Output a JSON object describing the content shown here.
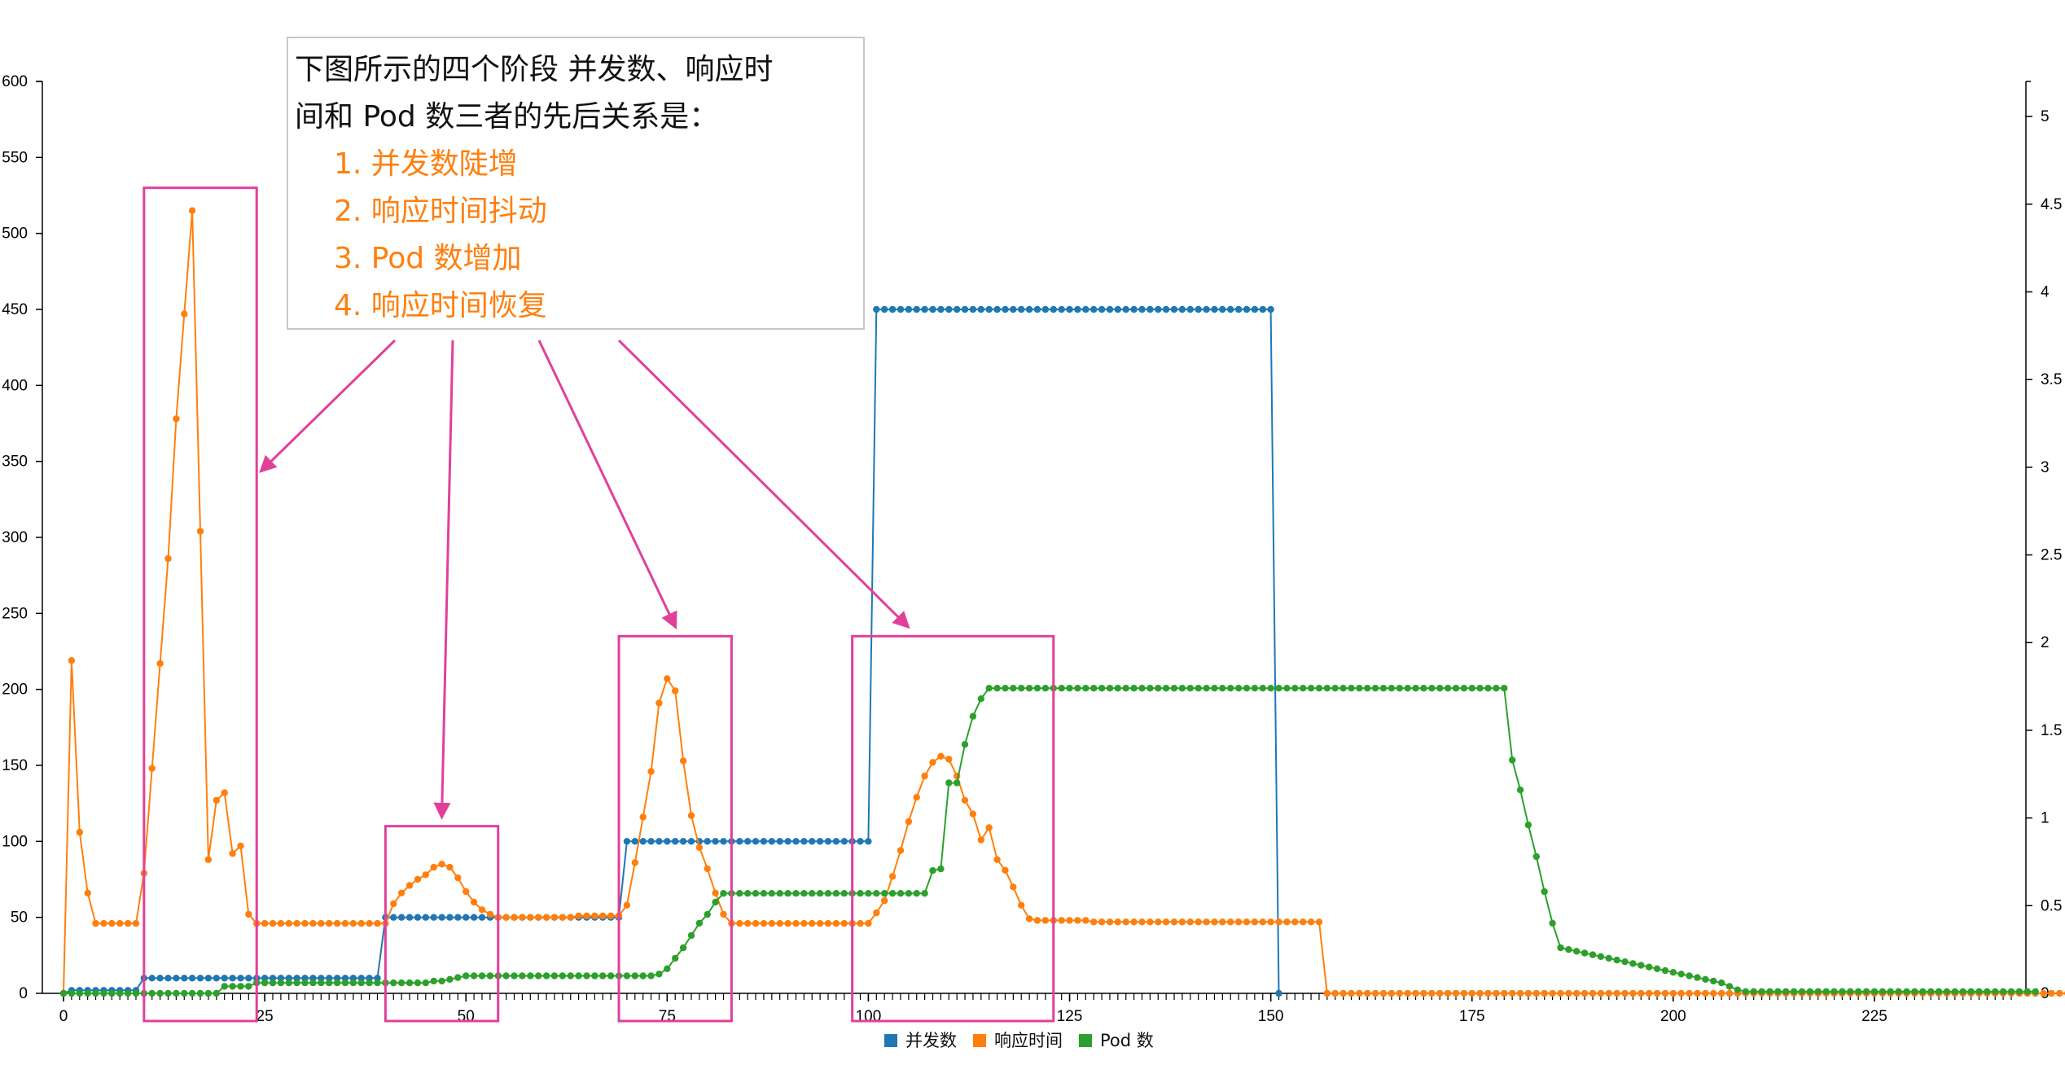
{
  "chart_data": {
    "type": "line",
    "title": "",
    "xlabel": "",
    "ylabel": "",
    "xlim": [
      0,
      242
    ],
    "ylim": [
      0,
      600
    ],
    "y2lim": [
      0,
      5.2
    ],
    "x_ticks": [
      "0",
      "25",
      "50",
      "75",
      "100",
      "125",
      "150",
      "175",
      "200",
      "225"
    ],
    "x_tick_values": [
      0,
      25,
      50,
      75,
      100,
      125,
      150,
      175,
      200,
      225
    ],
    "y_ticks": [
      "0",
      "50",
      "100",
      "150",
      "200",
      "250",
      "300",
      "350",
      "400",
      "450",
      "500",
      "550",
      "600"
    ],
    "y_tick_values": [
      0,
      50,
      100,
      150,
      200,
      250,
      300,
      350,
      400,
      450,
      500,
      550,
      600
    ],
    "y2_ticks": [
      "0",
      "0.5",
      "1",
      "1.5",
      "2",
      "2.5",
      "3",
      "3.5",
      "4",
      "4.5",
      "5"
    ],
    "y2_tick_values": [
      0,
      0.5,
      1,
      1.5,
      2,
      2.5,
      3,
      3.5,
      4,
      4.5,
      5
    ],
    "legend_position": "bottom-center",
    "series": [
      {
        "name": "并发数",
        "axis": "left",
        "color": "#1f77b4",
        "x_range": [
          0,
          150
        ],
        "values": [
          0,
          2,
          2,
          2,
          2,
          2,
          2,
          2,
          2,
          2,
          10,
          10,
          10,
          10,
          10,
          10,
          10,
          10,
          10,
          10,
          10,
          10,
          10,
          10,
          10,
          10,
          10,
          10,
          10,
          10,
          10,
          10,
          10,
          10,
          10,
          10,
          10,
          10,
          10,
          10,
          50,
          50,
          50,
          50,
          50,
          50,
          50,
          50,
          50,
          50,
          50,
          50,
          50,
          50,
          50,
          50,
          50,
          50,
          50,
          50,
          50,
          50,
          50,
          50,
          50,
          50,
          50,
          50,
          50,
          50,
          100,
          100,
          100,
          100,
          100,
          100,
          100,
          100,
          100,
          100,
          100,
          100,
          100,
          100,
          100,
          100,
          100,
          100,
          100,
          100,
          100,
          100,
          100,
          100,
          100,
          100,
          100,
          100,
          100,
          100,
          100,
          450,
          450,
          450,
          450,
          450,
          450,
          450,
          450,
          450,
          450,
          450,
          450,
          450,
          450,
          450,
          450,
          450,
          450,
          450,
          450,
          450,
          450,
          450,
          450,
          450,
          450,
          450,
          450,
          450,
          450,
          450,
          450,
          450,
          450,
          450,
          450,
          450,
          450,
          450,
          450,
          450,
          450,
          450,
          450,
          450,
          450,
          450,
          450,
          450,
          450,
          0
        ]
      },
      {
        "name": "响应时间",
        "axis": "left",
        "color": "#ff7f0e",
        "x_range": [
          0,
          241
        ],
        "values": [
          0,
          219,
          106,
          66,
          46,
          46,
          46,
          46,
          46,
          46,
          79,
          148,
          217,
          286,
          378,
          447,
          515,
          304,
          88,
          127,
          132,
          92,
          97,
          52,
          46,
          46,
          46,
          46,
          46,
          46,
          46,
          46,
          46,
          46,
          46,
          46,
          46,
          46,
          46,
          46,
          46,
          59,
          66,
          71,
          75,
          78,
          83,
          85,
          83,
          76,
          67,
          60,
          55,
          52,
          50,
          50,
          50,
          50,
          50,
          50,
          50,
          50,
          50,
          50,
          51,
          51,
          51,
          51,
          51,
          51,
          58,
          86,
          116,
          146,
          191,
          207,
          199,
          153,
          117,
          96,
          82,
          66,
          52,
          46,
          46,
          46,
          46,
          46,
          46,
          46,
          46,
          46,
          46,
          46,
          46,
          46,
          46,
          46,
          46,
          46,
          46,
          53,
          61,
          77,
          94,
          113,
          129,
          143,
          152,
          156,
          154,
          143,
          127,
          118,
          101,
          109,
          88,
          81,
          70,
          58,
          49,
          48,
          48,
          48,
          48,
          48,
          48,
          48,
          47,
          47,
          47,
          47,
          47,
          47,
          47,
          47,
          47,
          47,
          47,
          47,
          47,
          47,
          47,
          47,
          47,
          47,
          47,
          47,
          47,
          47,
          47,
          47,
          47,
          47,
          47,
          47,
          47,
          0,
          0,
          0,
          0,
          0,
          0,
          0,
          0,
          0,
          0,
          0,
          0,
          0,
          0,
          0,
          0,
          0,
          0,
          0,
          0,
          0,
          0,
          0,
          0,
          0,
          0,
          0,
          0,
          0,
          0,
          0,
          0,
          0,
          0,
          0,
          0,
          0,
          0,
          0,
          0,
          0,
          0,
          0,
          0,
          0,
          0,
          0,
          0,
          0,
          0,
          0,
          0,
          0,
          0,
          0,
          0,
          0,
          0,
          0,
          0,
          0,
          0,
          0,
          0,
          0,
          0,
          0,
          0,
          0,
          0,
          0,
          0,
          0,
          0,
          0,
          0,
          0,
          0,
          0,
          0,
          0,
          0,
          0,
          0,
          0,
          0,
          0,
          0,
          0,
          0,
          0,
          0,
          0,
          0,
          0,
          0
        ]
      },
      {
        "name": "Pod 数",
        "axis": "right",
        "color": "#2ca02c",
        "x_range": [
          0,
          241
        ],
        "values": [
          0,
          0,
          0,
          0,
          0,
          0,
          0,
          0,
          0,
          0,
          0,
          0,
          0,
          0,
          0,
          0,
          0,
          0,
          0,
          0,
          0.04,
          0.04,
          0.04,
          0.04,
          0.06,
          0.06,
          0.06,
          0.06,
          0.06,
          0.06,
          0.06,
          0.06,
          0.06,
          0.06,
          0.06,
          0.06,
          0.06,
          0.06,
          0.06,
          0.06,
          0.06,
          0.06,
          0.06,
          0.06,
          0.06,
          0.06,
          0.07,
          0.07,
          0.08,
          0.09,
          0.1,
          0.1,
          0.1,
          0.1,
          0.1,
          0.1,
          0.1,
          0.1,
          0.1,
          0.1,
          0.1,
          0.1,
          0.1,
          0.1,
          0.1,
          0.1,
          0.1,
          0.1,
          0.1,
          0.1,
          0.1,
          0.1,
          0.1,
          0.1,
          0.11,
          0.14,
          0.2,
          0.26,
          0.33,
          0.4,
          0.45,
          0.52,
          0.57,
          0.57,
          0.57,
          0.57,
          0.57,
          0.57,
          0.57,
          0.57,
          0.57,
          0.57,
          0.57,
          0.57,
          0.57,
          0.57,
          0.57,
          0.57,
          0.57,
          0.57,
          0.57,
          0.57,
          0.57,
          0.57,
          0.57,
          0.57,
          0.57,
          0.57,
          0.7,
          0.71,
          1.2,
          1.2,
          1.42,
          1.58,
          1.68,
          1.74,
          1.74,
          1.74,
          1.74,
          1.74,
          1.74,
          1.74,
          1.74,
          1.74,
          1.74,
          1.74,
          1.74,
          1.74,
          1.74,
          1.74,
          1.74,
          1.74,
          1.74,
          1.74,
          1.74,
          1.74,
          1.74,
          1.74,
          1.74,
          1.74,
          1.74,
          1.74,
          1.74,
          1.74,
          1.74,
          1.74,
          1.74,
          1.74,
          1.74,
          1.74,
          1.74,
          1.74,
          1.74,
          1.74,
          1.74,
          1.74,
          1.74,
          1.74,
          1.74,
          1.74,
          1.74,
          1.74,
          1.74,
          1.74,
          1.74,
          1.74,
          1.74,
          1.74,
          1.74,
          1.74,
          1.74,
          1.74,
          1.74,
          1.74,
          1.74,
          1.74,
          1.74,
          1.74,
          1.74,
          1.74,
          1.33,
          1.16,
          0.96,
          0.78,
          0.58,
          0.4,
          0.26,
          0.25,
          0.24,
          0.23,
          0.22,
          0.21,
          0.2,
          0.19,
          0.18,
          0.17,
          0.16,
          0.15,
          0.14,
          0.13,
          0.12,
          0.11,
          0.1,
          0.09,
          0.08,
          0.07,
          0.06,
          0.04,
          0.02,
          0.01,
          0.01,
          0.01,
          0.01,
          0.01,
          0.01,
          0.01,
          0.01,
          0.01,
          0.01,
          0.01,
          0.01,
          0.01,
          0.01,
          0.01,
          0.01,
          0.01,
          0.01,
          0.01,
          0.01,
          0.01,
          0.01,
          0.01,
          0.01,
          0.01,
          0.01,
          0.01,
          0.01,
          0.01,
          0.01,
          0.01,
          0.01,
          0.01,
          0.01,
          0.01,
          0.01,
          0.01
        ]
      }
    ],
    "highlight_boxes": [
      {
        "x_range": [
          10,
          24
        ],
        "y_range": [
          0,
          530
        ]
      },
      {
        "x_range": [
          40,
          54
        ],
        "y_range": [
          0,
          110
        ]
      },
      {
        "x_range": [
          69,
          83
        ],
        "y_range": [
          0,
          235
        ]
      },
      {
        "x_range": [
          98,
          123
        ],
        "y_range": [
          0,
          235
        ]
      }
    ],
    "highlight_color": "#e0409a",
    "annotation": {
      "lines": [
        "下图所示的四个阶段 并发数、响应时",
        "间和 Pod 数三者的先后关系是："
      ],
      "steps": [
        "1. 并发数陡增",
        "2. 响应时间抖动",
        "3. Pod 数增加",
        "4. 响应时间恢复"
      ],
      "step_color": "#ff7f0e"
    }
  }
}
